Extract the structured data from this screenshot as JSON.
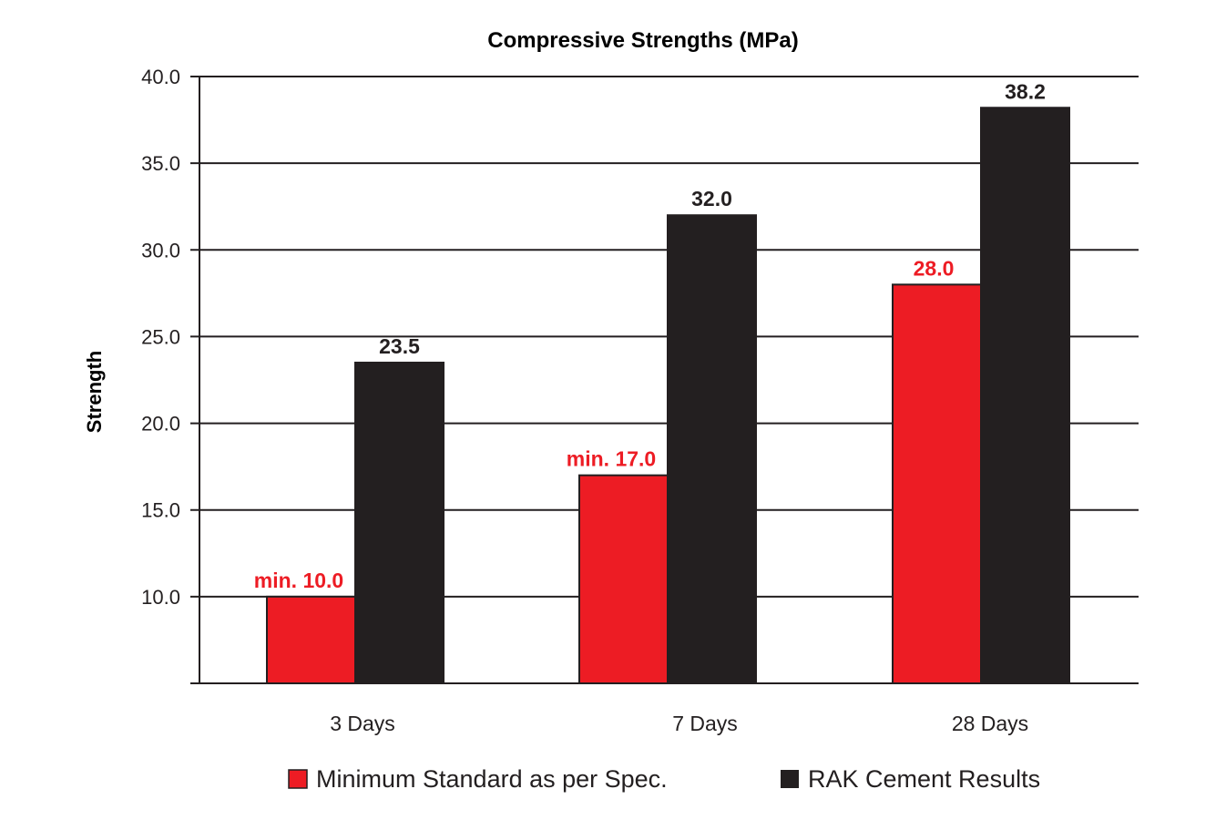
{
  "chart_data": {
    "type": "bar",
    "title": "Compressive Strengths (MPa)",
    "xlabel": "",
    "ylabel": "Strength",
    "ylim": [
      5,
      40
    ],
    "yticks": [
      "10.0",
      "15.0",
      "20.0",
      "25.0",
      "30.0",
      "35.0",
      "40.0"
    ],
    "ytick_values": [
      10,
      15,
      20,
      25,
      30,
      35,
      40
    ],
    "grid": true,
    "legend_position": "bottom",
    "categories": [
      "3 Days",
      "7 Days",
      "28 Days"
    ],
    "series": [
      {
        "name": "Minimum Standard as per Spec.",
        "color": "#ed1c24",
        "values": [
          10.0,
          17.0,
          28.0
        ],
        "labels": [
          "min. 10.0",
          "min. 17.0",
          "28.0"
        ]
      },
      {
        "name": "RAK Cement Results",
        "color": "#231f20",
        "values": [
          23.5,
          32.0,
          38.2
        ],
        "labels": [
          "23.5",
          "32.0",
          "38.2"
        ]
      }
    ]
  }
}
